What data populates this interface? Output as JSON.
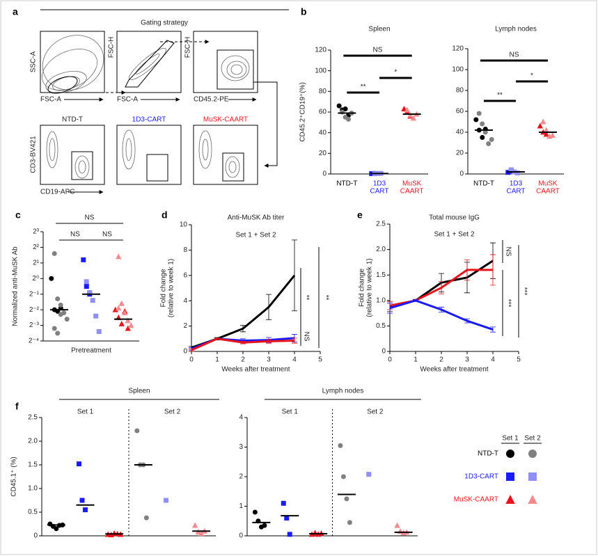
{
  "gating": {
    "panel": "a",
    "title": "Gating strategy",
    "row1": [
      {
        "y": "SSC-A",
        "x": "FSC-A"
      },
      {
        "y": "FSC-H",
        "x": "FSC-A"
      },
      {
        "y": "FSC-H",
        "x": "CD45.2-PE"
      }
    ],
    "row2_titles": [
      "NTD-T",
      "1D3-CART",
      "MuSK-CAART"
    ],
    "row2_y": "CD3-BV421",
    "row2_x": "CD19-APC"
  },
  "chart_data": [
    {
      "type": "dot",
      "panel": "b",
      "title": "Spleen",
      "ylabel": "CD45.2⁺CD19⁺(%)",
      "ylim": [
        0,
        120
      ],
      "yticks": [
        0,
        20,
        40,
        60,
        80,
        100,
        120
      ],
      "groups": [
        {
          "label": [
            "NTD-T"
          ],
          "median": 59,
          "sets": [
            {
              "color": "#000000",
              "marker": "circle",
              "values": [
                66,
                62,
                63,
                57
              ]
            },
            {
              "color": "#808080",
              "marker": "circle",
              "values": [
                60,
                55,
                53,
                59
              ]
            }
          ]
        },
        {
          "label": [
            "1D3",
            "CART"
          ],
          "median": 0.4,
          "sets": [
            {
              "color": "#1a1aff",
              "marker": "square",
              "values": [
                0.3,
                0.5
              ]
            },
            {
              "color": "#8f8ff5",
              "marker": "square",
              "values": [
                0.2,
                0.4,
                0.6
              ]
            }
          ]
        },
        {
          "label": [
            "MuSK",
            "CAART"
          ],
          "median": 58,
          "sets": [
            {
              "color": "#e8141c",
              "marker": "triangle",
              "values": [
                63,
                60,
                56
              ]
            },
            {
              "color": "#f28a8e",
              "marker": "triangle",
              "values": [
                62,
                57,
                54,
                58
              ]
            }
          ]
        }
      ],
      "annotations": [
        "**",
        "*",
        "NS"
      ]
    },
    {
      "type": "dot",
      "title": "Lymph nodes",
      "ylim": [
        0,
        120
      ],
      "yticks": [
        0,
        20,
        40,
        60,
        80,
        100,
        120
      ],
      "groups": [
        {
          "label": [
            "NTD-T"
          ],
          "median": 42,
          "sets": [
            {
              "color": "#000000",
              "marker": "circle",
              "values": [
                52,
                42,
                35,
                43
              ]
            },
            {
              "color": "#808080",
              "marker": "circle",
              "values": [
                58,
                48,
                40,
                29,
                33
              ]
            }
          ]
        },
        {
          "label": [
            "1D3",
            "CART"
          ],
          "median": 2,
          "sets": [
            {
              "color": "#1a1aff",
              "marker": "square",
              "values": [
                1.5,
                3
              ]
            },
            {
              "color": "#8f8ff5",
              "marker": "square",
              "values": [
                4,
                2,
                1
              ]
            }
          ]
        },
        {
          "label": [
            "MuSK",
            "CAART"
          ],
          "median": 40,
          "sets": [
            {
              "color": "#e8141c",
              "marker": "triangle",
              "values": [
                46,
                40,
                38
              ]
            },
            {
              "color": "#f28a8e",
              "marker": "triangle",
              "values": [
                50,
                42,
                36,
                37
              ]
            }
          ]
        }
      ],
      "annotations": [
        "**",
        "*",
        "NS"
      ]
    },
    {
      "type": "dot",
      "panel": "c",
      "ylabel": "Normalized anti-MuSK Ab",
      "xlabel": "Pretreatment",
      "log_scale": true,
      "log_base": 2,
      "ylim": [
        0.0625,
        8
      ],
      "yticks": [
        {
          "value": 0.0625,
          "label": "2⁻⁴"
        },
        {
          "value": 0.125,
          "label": "2⁻³"
        },
        {
          "value": 0.25,
          "label": "2⁻²"
        },
        {
          "value": 0.5,
          "label": "2⁻¹"
        },
        {
          "value": 1,
          "label": "2⁰"
        },
        {
          "value": 2,
          "label": "2¹"
        },
        {
          "value": 4,
          "label": "2²"
        },
        {
          "value": 8,
          "label": "2³"
        }
      ],
      "groups": [
        {
          "median": 0.25,
          "sets": [
            {
              "color": "#000000",
              "marker": "circle",
              "values": [
                1.0,
                0.25,
                0.233,
                0.268
              ]
            },
            {
              "color": "#808080",
              "marker": "circle",
              "values": [
                3.03,
                0.406,
                0.308,
                0.218,
                0.165,
                0.109,
                0.088,
                0.203
              ]
            }
          ]
        },
        {
          "median": 0.5,
          "sets": [
            {
              "color": "#1a1aff",
              "marker": "square",
              "values": [
                2.3,
                0.707,
                0.5
              ]
            },
            {
              "color": "#8f8ff5",
              "marker": "square",
              "values": [
                0.871,
                0.536,
                0.379,
                0.189,
                0.095
              ]
            }
          ]
        },
        {
          "median": 0.165,
          "sets": [
            {
              "color": "#e8141c",
              "marker": "triangle",
              "values": [
                0.25,
                0.177,
                0.134,
                0.233,
                0.109
              ]
            },
            {
              "color": "#f28a8e",
              "marker": "triangle",
              "values": [
                2.64,
                0.33,
                0.218,
                0.154,
                0.125,
                0.268
              ]
            }
          ]
        }
      ],
      "annotations": [
        "NS",
        "NS",
        "NS"
      ]
    },
    {
      "type": "line",
      "panel": "d",
      "title": "Anti-MuSK Ab titer",
      "subtitle": "Set 1 + Set 2",
      "xlabel": "Weeks after treatment",
      "ylabel": [
        "Fold change",
        "(relative to week 1)"
      ],
      "xlim": [
        0,
        5
      ],
      "xticks": [
        0,
        1,
        2,
        3,
        4,
        5
      ],
      "ylim": [
        0,
        10
      ],
      "yticks": [
        0,
        2,
        4,
        6,
        8,
        10
      ],
      "x": [
        0,
        1,
        2,
        3,
        4
      ],
      "series": [
        {
          "color": "#000000",
          "values": [
            0.3,
            1,
            1.8,
            3.5,
            6
          ],
          "errors": [
            0.1,
            0.1,
            0.25,
            1.0,
            2.8
          ]
        },
        {
          "color": "#1a1aff",
          "values": [
            0.2,
            1,
            0.85,
            0.9,
            1.05
          ],
          "errors": [
            0.1,
            0.05,
            0.15,
            0.2,
            0.3
          ]
        },
        {
          "color": "#e8141c",
          "values": [
            0.1,
            1,
            0.7,
            0.8,
            0.85
          ],
          "errors": [
            0.1,
            0.05,
            0.1,
            0.15,
            0.2
          ]
        }
      ],
      "annotations": [
        "**",
        "NS",
        "**"
      ]
    },
    {
      "type": "line",
      "panel": "e",
      "title": "Total mouse IgG",
      "subtitle": "Set 1 + Set 2",
      "xlabel": "Weeks after treatment",
      "ylabel": [
        "Fold change",
        "(relative to week 1)"
      ],
      "xlim": [
        0,
        5
      ],
      "xticks": [
        0,
        1,
        2,
        3,
        4,
        5
      ],
      "ylim": [
        0,
        2.5
      ],
      "yticks": [
        0,
        0.5,
        {
          "value": 1,
          "label": "1.0"
        },
        1.5,
        {
          "value": 2,
          "label": "2.0"
        },
        2.5
      ],
      "x": [
        0,
        1,
        2,
        3,
        4
      ],
      "series": [
        {
          "color": "#000000",
          "values": [
            0.88,
            1,
            1.35,
            1.45,
            1.78
          ],
          "errors": [
            0.1,
            0.02,
            0.18,
            0.3,
            0.35
          ]
        },
        {
          "color": "#e8141c",
          "values": [
            0.9,
            1,
            1.25,
            1.6,
            1.6
          ],
          "errors": [
            0.08,
            0.02,
            0.12,
            0.2,
            0.3
          ]
        },
        {
          "color": "#1a1aff",
          "values": [
            0.85,
            1,
            0.82,
            0.6,
            0.43
          ],
          "errors": [
            0.1,
            0.02,
            0.05,
            0.04,
            0.05
          ]
        }
      ],
      "annotations": [
        "NS",
        "***",
        "***"
      ]
    },
    {
      "type": "dot",
      "panel": "f",
      "title": "Spleen",
      "sections": [
        "Set 1",
        "Set 2"
      ],
      "ylabel": "CD45.1⁺ (%)",
      "ylim": [
        0,
        2.5
      ],
      "yticks": [
        0,
        0.5,
        {
          "value": 1,
          "label": "1.0"
        },
        1.5,
        {
          "value": 2,
          "label": "2.0"
        },
        2.5
      ],
      "groups": [
        {
          "median": 0.23,
          "sets": [
            {
              "color": "#000000",
              "marker": "circle",
              "values": [
                0.25,
                0.2,
                0.15,
                0.22,
                0.23
              ]
            }
          ]
        },
        {
          "median": 0.65,
          "sets": [
            {
              "color": "#1a1aff",
              "marker": "square",
              "values": [
                1.52,
                0.75,
                0.55
              ]
            }
          ]
        },
        {
          "median": 0.04,
          "sets": [
            {
              "color": "#e8141c",
              "marker": "triangle",
              "values": [
                0.03,
                0.02,
                0.05,
                0.04,
                0.03
              ]
            }
          ]
        },
        {
          "median": 1.5,
          "sets": [
            {
              "color": "#808080",
              "marker": "circle",
              "values": [
                2.22,
                1.5,
                1.5,
                0.38
              ]
            }
          ]
        },
        {
          "sets": [
            {
              "color": "#8f8ff5",
              "marker": "square",
              "values": [
                0.75
              ]
            }
          ]
        },
        {
          "median": 0.1,
          "sets": [
            {
              "color": "#f28a8e",
              "marker": "triangle",
              "values": [
                0.22,
                0.08,
                0.05,
                0.1
              ]
            }
          ]
        }
      ]
    },
    {
      "type": "dot",
      "title": "Lymph nodes",
      "sections": [
        "Set 1",
        "Set 2"
      ],
      "ylim": [
        0,
        4
      ],
      "yticks": [
        0,
        1,
        2,
        3,
        4
      ],
      "groups": [
        {
          "median": 0.45,
          "sets": [
            {
              "color": "#000000",
              "marker": "circle",
              "values": [
                0.8,
                0.5,
                0.3,
                0.35
              ]
            }
          ]
        },
        {
          "median": 0.68,
          "sets": [
            {
              "color": "#1a1aff",
              "marker": "square",
              "values": [
                1.1,
                0.6,
                0.05
              ]
            }
          ]
        },
        {
          "median": 0.07,
          "sets": [
            {
              "color": "#e8141c",
              "marker": "triangle",
              "values": [
                0.05,
                0.1,
                0.05,
                0.08
              ]
            }
          ]
        },
        {
          "median": 1.4,
          "sets": [
            {
              "color": "#808080",
              "marker": "circle",
              "values": [
                3.05,
                2.0,
                1.25,
                0.45
              ]
            }
          ]
        },
        {
          "sets": [
            {
              "color": "#8f8ff5",
              "marker": "square",
              "values": [
                2.08
              ]
            }
          ]
        },
        {
          "median": 0.12,
          "sets": [
            {
              "color": "#f28a8e",
              "marker": "triangle",
              "values": [
                0.35,
                0.15,
                0.1,
                0.12
              ]
            }
          ]
        }
      ]
    }
  ],
  "legend": {
    "headers": [
      "Set 1",
      "Set 2"
    ],
    "rows": [
      {
        "label": "NTD-T",
        "marker": "circle",
        "colors": [
          "#000000",
          "#808080"
        ]
      },
      {
        "label": "1D3-CART",
        "marker": "square",
        "colors": [
          "#1a1aff",
          "#8f8ff5"
        ]
      },
      {
        "label": "MuSK-CAART",
        "marker": "triangle",
        "colors": [
          "#e8141c",
          "#f28a8e"
        ]
      }
    ]
  }
}
